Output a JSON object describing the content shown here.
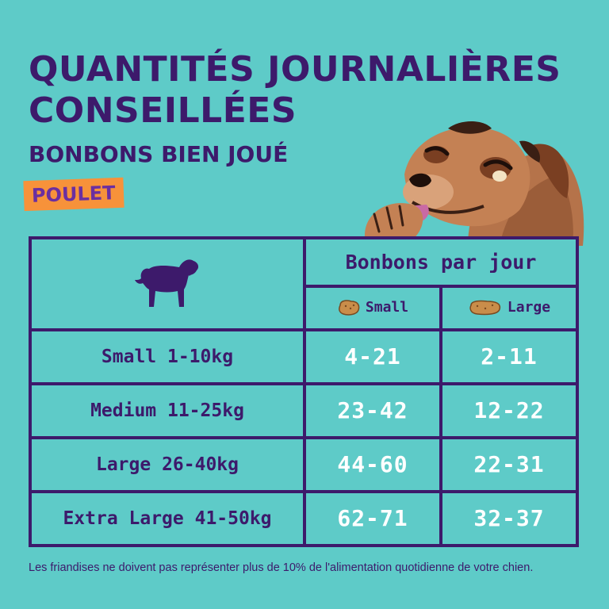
{
  "header": {
    "title": "QUANTITÉS JOURNALIÈRES CONSEILLÉES",
    "subtitle": "BONBONS BIEN JOUÉ",
    "flavor": "POULET"
  },
  "table": {
    "per_day_header": "Bonbons par jour",
    "columns": [
      "Small",
      "Large"
    ],
    "rows": [
      {
        "size": "Small 1-10kg",
        "small": "4-21",
        "large": "2-11"
      },
      {
        "size": "Medium 11-25kg",
        "small": "23-42",
        "large": "12-22"
      },
      {
        "size": "Large 26-40kg",
        "small": "44-60",
        "large": "22-31"
      },
      {
        "size": "Extra Large 41-50kg",
        "small": "62-71",
        "large": "32-37"
      }
    ]
  },
  "footnote": "Les friandises ne doivent pas représenter plus de 10% de l'alimentation quotidienne de votre chien.",
  "colors": {
    "background": "#5ecbc8",
    "primary": "#3d1a6b",
    "flavor_badge": "#f7923a",
    "quantity_text": "#ffffff"
  },
  "icons": [
    "dog-silhouette-icon",
    "treat-icon",
    "dog-illustration"
  ]
}
